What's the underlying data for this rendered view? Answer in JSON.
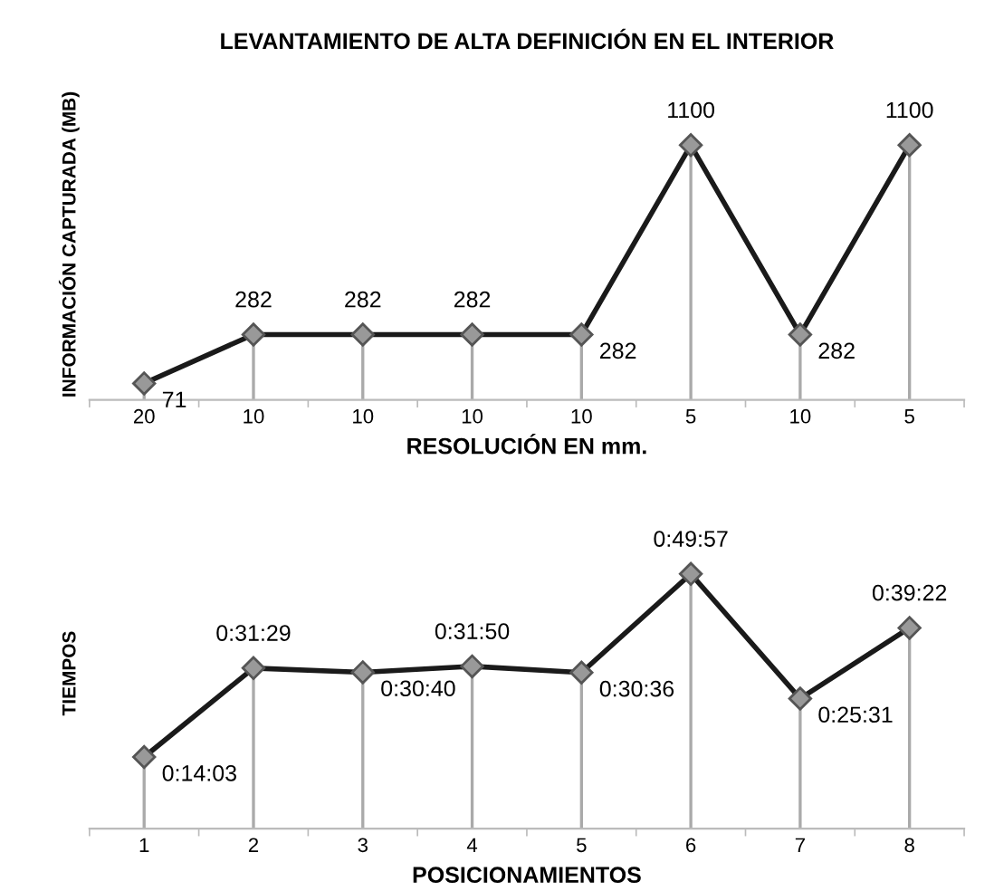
{
  "chart_data": [
    {
      "type": "line",
      "title": "LEVANTAMIENTO DE ALTA DEFINICIÓN EN EL INTERIOR",
      "xlabel": "RESOLUCIÓN EN mm.",
      "ylabel": "INFORMACIÓN CAPTURADA (MB)",
      "tick_labels": "x",
      "marker": "diamond",
      "grid": "x",
      "data_labels": true,
      "categories": [
        "20",
        "10",
        "10",
        "10",
        "10",
        "5",
        "10",
        "5"
      ],
      "series": [
        {
          "color": "#1a1a1a",
          "values": [
            71,
            282,
            282,
            282,
            282,
            1100,
            282,
            1100
          ]
        }
      ]
    },
    {
      "type": "line",
      "xlabel": "POSICIONAMIENTOS",
      "ylabel": "TIEMPOS",
      "tick_labels": "x",
      "marker": "diamond",
      "grid": "x",
      "categories": [
        "1",
        "2",
        "3",
        "4",
        "5",
        "6",
        "7",
        "8"
      ],
      "series": [
        {
          "color": "#1a1a1a",
          "values": [
            14.05,
            31.48,
            30.67,
            31.83,
            30.6,
            49.95,
            25.52,
            39.37
          ],
          "value_labels": [
            "0:14:03",
            "0:31:29",
            "0:30:40",
            "0:31:50",
            "0:30:36",
            "0:49:57",
            "0:25:31",
            "0:39:22"
          ]
        }
      ]
    }
  ]
}
